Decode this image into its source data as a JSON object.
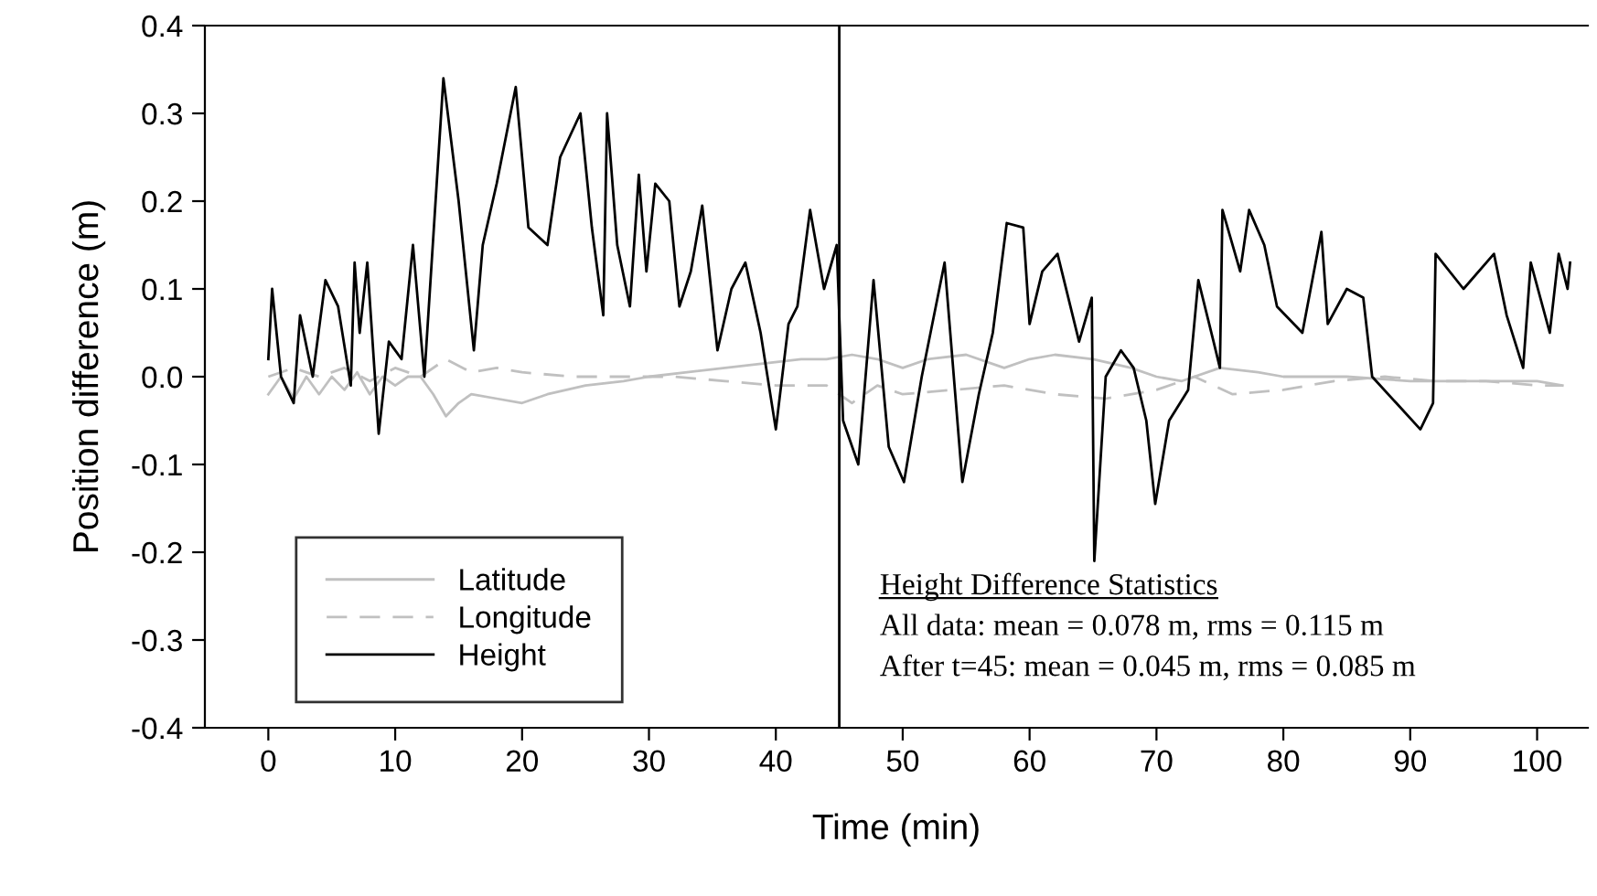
{
  "chart_data": {
    "type": "line",
    "xlabel": "Time (min)",
    "ylabel": "Position difference (m)",
    "xlim": [
      -5,
      104
    ],
    "ylim": [
      -0.4,
      0.4
    ],
    "xticks": [
      0,
      10,
      20,
      30,
      40,
      50,
      60,
      70,
      80,
      90,
      100
    ],
    "yticks": [
      -0.4,
      -0.3,
      -0.2,
      -0.1,
      {
        "value": 0,
        "label": "0.0"
      },
      0.1,
      0.2,
      0.3,
      0.4
    ],
    "grid": false,
    "legend": "bottom left",
    "ref_lines": [
      {
        "axis": "x",
        "value": 45,
        "color": "#000000"
      }
    ],
    "annotations": [
      "Height Difference Statistics",
      "All data: mean = 0.078 m, rms = 0.115 m",
      "After t=45: mean = 0.045 m, rms = 0.085 m"
    ],
    "series": [
      {
        "name": "Latitude",
        "color": "#c0c0c0",
        "line_style": "solid",
        "x": [
          0,
          1,
          2,
          3,
          4,
          5,
          6,
          7,
          8,
          9,
          10,
          11,
          12,
          13,
          14,
          15,
          16,
          18,
          20,
          22,
          25,
          28,
          30,
          33,
          36,
          39,
          42,
          44,
          46,
          48,
          50,
          52,
          55,
          58,
          60,
          62,
          65,
          68,
          70,
          72,
          75,
          78,
          80,
          85,
          90,
          95,
          100,
          102
        ],
        "values": [
          -0.02,
          0.0,
          -0.025,
          0.0,
          -0.02,
          0.0,
          -0.015,
          0.005,
          -0.02,
          0.0,
          -0.01,
          0.0,
          0.0,
          -0.02,
          -0.045,
          -0.03,
          -0.02,
          -0.025,
          -0.03,
          -0.02,
          -0.01,
          -0.005,
          0.0,
          0.005,
          0.01,
          0.015,
          0.02,
          0.02,
          0.025,
          0.02,
          0.01,
          0.02,
          0.025,
          0.01,
          0.02,
          0.025,
          0.02,
          0.01,
          0.0,
          -0.005,
          0.01,
          0.005,
          0.0,
          0.0,
          -0.005,
          -0.005,
          -0.005,
          -0.01
        ]
      },
      {
        "name": "Longitude",
        "color": "#c0c0c0",
        "line_style": "dashed",
        "x": [
          0,
          2,
          4,
          6,
          8,
          10,
          12,
          14,
          16,
          18,
          20,
          24,
          28,
          32,
          36,
          40,
          44,
          46,
          48,
          50,
          54,
          58,
          62,
          66,
          70,
          73,
          76,
          80,
          84,
          88,
          92,
          96,
          100,
          102
        ],
        "values": [
          0.0,
          0.01,
          0.0,
          0.01,
          -0.005,
          0.01,
          0.0,
          0.02,
          0.005,
          0.01,
          0.005,
          0.0,
          0.0,
          0.0,
          -0.005,
          -0.01,
          -0.01,
          -0.03,
          -0.01,
          -0.02,
          -0.015,
          -0.01,
          -0.02,
          -0.025,
          -0.015,
          0.0,
          -0.02,
          -0.015,
          -0.005,
          0.0,
          -0.005,
          -0.005,
          -0.01,
          -0.01
        ]
      },
      {
        "name": "Height",
        "color": "#000000",
        "line_style": "solid",
        "x": [
          0,
          0.3,
          1,
          2,
          2.5,
          3.5,
          4.5,
          5.5,
          6.5,
          6.8,
          7.2,
          7.8,
          8.7,
          9.5,
          10.5,
          11.4,
          12.3,
          13.8,
          15,
          16.2,
          16.9,
          18,
          19.5,
          20.5,
          22,
          23,
          24.6,
          25.5,
          26.4,
          26.7,
          27.5,
          28.5,
          29.2,
          29.8,
          30.5,
          31.6,
          32.4,
          33.3,
          34.2,
          35.4,
          36.5,
          37.6,
          38.8,
          40,
          41,
          41.7,
          42.7,
          43.8,
          44.8,
          45.3,
          46.5,
          47.7,
          48.9,
          50.1,
          51.5,
          53.3,
          54.7,
          56,
          57.1,
          58.2,
          59.5,
          60,
          61,
          62.2,
          63.9,
          64.9,
          65.1,
          66,
          67.2,
          68.2,
          69.2,
          69.9,
          71,
          72.5,
          73.3,
          74.5,
          75,
          75.2,
          76.6,
          77.3,
          78.5,
          79.5,
          81.5,
          83,
          83.5,
          85,
          86.3,
          87,
          88.9,
          90.8,
          91.8,
          92,
          94.2,
          96.6,
          97.6,
          98.9,
          99.5,
          101,
          101.7,
          102.4,
          102.6
        ],
        "values": [
          0.02,
          0.1,
          0.0,
          -0.03,
          0.07,
          0.0,
          0.11,
          0.08,
          -0.01,
          0.13,
          0.05,
          0.13,
          -0.065,
          0.04,
          0.02,
          0.15,
          0.0,
          0.34,
          0.2,
          0.03,
          0.15,
          0.22,
          0.33,
          0.17,
          0.15,
          0.25,
          0.3,
          0.17,
          0.07,
          0.3,
          0.15,
          0.08,
          0.23,
          0.12,
          0.22,
          0.2,
          0.08,
          0.12,
          0.195,
          0.03,
          0.1,
          0.13,
          0.05,
          -0.06,
          0.06,
          0.08,
          0.19,
          0.1,
          0.15,
          -0.05,
          -0.1,
          0.11,
          -0.08,
          -0.12,
          0.0,
          0.13,
          -0.12,
          -0.02,
          0.05,
          0.175,
          0.17,
          0.06,
          0.12,
          0.14,
          0.04,
          0.09,
          -0.21,
          0.0,
          0.03,
          0.01,
          -0.05,
          -0.145,
          -0.05,
          -0.015,
          0.11,
          0.04,
          0.01,
          0.19,
          0.12,
          0.19,
          0.15,
          0.08,
          0.05,
          0.165,
          0.06,
          0.1,
          0.09,
          0.0,
          -0.03,
          -0.06,
          -0.03,
          0.14,
          0.1,
          0.14,
          0.07,
          0.01,
          0.13,
          0.05,
          0.14,
          0.1,
          0.13
        ]
      }
    ]
  }
}
